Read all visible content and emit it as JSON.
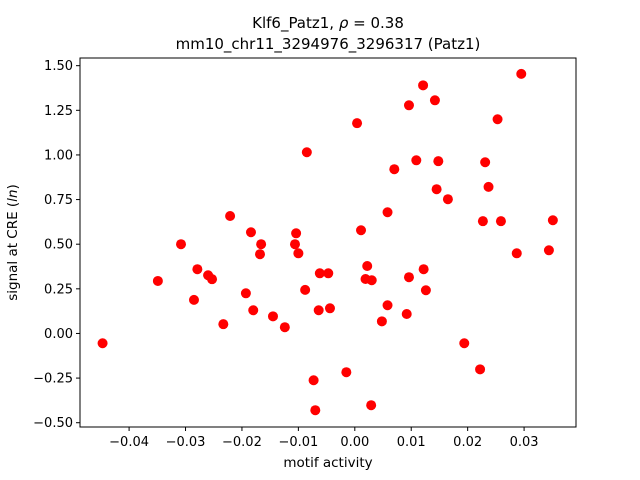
{
  "chart_data": {
    "type": "scatter",
    "title_line1_prefix": "Klf6_Patz1, ",
    "title_rho_symbol": "ρ",
    "title_rho_value": " = 0.38",
    "title_line2": "mm10_chr11_3294976_3296317 (Patz1)",
    "xlabel": "motif activity",
    "ylabel_prefix": "signal at CRE (",
    "ylabel_italic": "ln",
    "ylabel_suffix": ")",
    "xlim": [
      -0.0487,
      0.0392
    ],
    "ylim": [
      -0.524,
      1.543
    ],
    "xticks": [
      -0.04,
      -0.03,
      -0.02,
      -0.01,
      0.0,
      0.01,
      0.02,
      0.03
    ],
    "xtick_labels": [
      "−0.04",
      "−0.03",
      "−0.02",
      "−0.01",
      "0.00",
      "0.01",
      "0.02",
      "0.03"
    ],
    "yticks": [
      -0.5,
      -0.25,
      0.0,
      0.25,
      0.5,
      0.75,
      1.0,
      1.25,
      1.5
    ],
    "ytick_labels": [
      "−0.50",
      "−0.25",
      "0.00",
      "0.25",
      "0.50",
      "0.75",
      "1.00",
      "1.25",
      "1.50"
    ],
    "grid": false,
    "marker_color": "#ff0000",
    "points": [
      [
        -0.0447,
        -0.055
      ],
      [
        -0.0349,
        0.294
      ],
      [
        -0.0308,
        0.5
      ],
      [
        -0.0285,
        0.188
      ],
      [
        -0.0279,
        0.36
      ],
      [
        -0.026,
        0.326
      ],
      [
        -0.0253,
        0.304
      ],
      [
        -0.0233,
        0.052
      ],
      [
        -0.0221,
        0.658
      ],
      [
        -0.0193,
        0.225
      ],
      [
        -0.0184,
        0.567
      ],
      [
        -0.018,
        0.13
      ],
      [
        -0.0168,
        0.444
      ],
      [
        -0.0166,
        0.5
      ],
      [
        -0.0145,
        0.096
      ],
      [
        -0.0124,
        0.035
      ],
      [
        -0.0104,
        0.561
      ],
      [
        -0.0106,
        0.5
      ],
      [
        -0.01,
        0.449
      ],
      [
        -0.0088,
        0.244
      ],
      [
        -0.0085,
        1.015
      ],
      [
        -0.0073,
        -0.262
      ],
      [
        -0.007,
        -0.43
      ],
      [
        -0.0064,
        0.13
      ],
      [
        -0.0062,
        0.337
      ],
      [
        -0.0047,
        0.337
      ],
      [
        -0.0044,
        0.141
      ],
      [
        -0.0015,
        -0.217
      ],
      [
        0.0004,
        1.178
      ],
      [
        0.0011,
        0.578
      ],
      [
        0.0019,
        0.305
      ],
      [
        0.0022,
        0.378
      ],
      [
        0.003,
        0.298
      ],
      [
        0.0029,
        -0.402
      ],
      [
        0.0048,
        0.068
      ],
      [
        0.0058,
        0.679
      ],
      [
        0.0058,
        0.158
      ],
      [
        0.007,
        0.92
      ],
      [
        0.0092,
        0.109
      ],
      [
        0.0096,
        1.278
      ],
      [
        0.0096,
        0.315
      ],
      [
        0.0109,
        0.97
      ],
      [
        0.0121,
        1.39
      ],
      [
        0.0122,
        0.36
      ],
      [
        0.0126,
        0.242
      ],
      [
        0.0142,
        1.306
      ],
      [
        0.0145,
        0.808
      ],
      [
        0.0148,
        0.965
      ],
      [
        0.0165,
        0.752
      ],
      [
        0.0194,
        -0.055
      ],
      [
        0.0222,
        -0.201
      ],
      [
        0.0227,
        0.629
      ],
      [
        0.0231,
        0.959
      ],
      [
        0.0237,
        0.821
      ],
      [
        0.0253,
        1.2
      ],
      [
        0.0259,
        0.629
      ],
      [
        0.0287,
        0.449
      ],
      [
        0.0295,
        1.454
      ],
      [
        0.0344,
        0.466
      ],
      [
        0.0351,
        0.634
      ]
    ]
  }
}
